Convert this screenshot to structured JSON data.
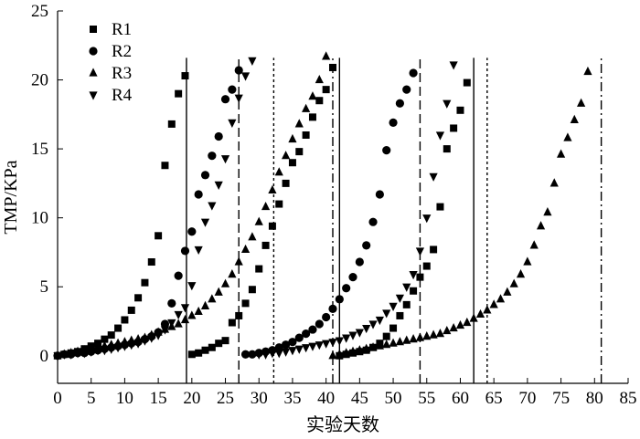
{
  "chart_data": {
    "type": "scatter",
    "title": "",
    "xlabel": "实验天数",
    "ylabel": "TMP/KPa",
    "xlim": [
      0,
      85
    ],
    "ylim": [
      -2,
      25
    ],
    "xticks": [
      0,
      5,
      10,
      15,
      20,
      25,
      30,
      35,
      40,
      45,
      50,
      55,
      60,
      65,
      70,
      75,
      80,
      85
    ],
    "yticks": [
      0,
      5,
      10,
      15,
      20,
      25
    ],
    "grid": false,
    "legend_position": "top-left",
    "series": [
      {
        "name": "R1",
        "marker": "square",
        "values": [
          [
            0,
            0
          ],
          [
            1,
            0.1
          ],
          [
            2,
            0.2
          ],
          [
            3,
            0.3
          ],
          [
            4,
            0.5
          ],
          [
            5,
            0.7
          ],
          [
            6,
            0.9
          ],
          [
            7,
            1.2
          ],
          [
            8,
            1.5
          ],
          [
            9,
            2.0
          ],
          [
            10,
            2.6
          ],
          [
            11,
            3.3
          ],
          [
            12,
            4.2
          ],
          [
            13,
            5.3
          ],
          [
            14,
            6.8
          ],
          [
            15,
            8.7
          ],
          [
            16,
            13.8
          ],
          [
            17,
            16.8
          ],
          [
            18,
            19.0
          ],
          [
            19,
            20.3
          ],
          [
            20,
            0.1
          ],
          [
            21,
            0.2
          ],
          [
            22,
            0.4
          ],
          [
            23,
            0.6
          ],
          [
            24,
            0.9
          ],
          [
            25,
            1.1
          ],
          [
            26,
            2.4
          ],
          [
            27,
            2.9
          ],
          [
            28,
            3.8
          ],
          [
            29,
            4.8
          ],
          [
            30,
            6.3
          ],
          [
            31,
            8.0
          ],
          [
            32,
            9.4
          ],
          [
            33,
            11.0
          ],
          [
            34,
            12.5
          ],
          [
            35,
            14.0
          ],
          [
            36,
            14.8
          ],
          [
            37,
            16.0
          ],
          [
            38,
            17.3
          ],
          [
            39,
            18.5
          ],
          [
            40,
            19.3
          ],
          [
            41,
            20.9
          ],
          [
            42,
            0
          ],
          [
            43,
            0.1
          ],
          [
            44,
            0.2
          ],
          [
            45,
            0.3
          ],
          [
            46,
            0.4
          ],
          [
            47,
            0.6
          ],
          [
            48,
            0.9
          ],
          [
            49,
            1.4
          ],
          [
            50,
            2.0
          ],
          [
            51,
            2.9
          ],
          [
            52,
            3.7
          ],
          [
            53,
            4.7
          ],
          [
            54,
            5.7
          ],
          [
            55,
            6.5
          ],
          [
            56,
            7.7
          ],
          [
            57,
            10.8
          ],
          [
            58,
            15.0
          ],
          [
            59,
            16.5
          ],
          [
            60,
            17.8
          ],
          [
            61,
            19.8
          ]
        ]
      },
      {
        "name": "R2",
        "marker": "circle",
        "values": [
          [
            0,
            0
          ],
          [
            1,
            0.1
          ],
          [
            2,
            0.1
          ],
          [
            3,
            0.2
          ],
          [
            4,
            0.2
          ],
          [
            5,
            0.3
          ],
          [
            6,
            0.4
          ],
          [
            7,
            0.5
          ],
          [
            8,
            0.6
          ],
          [
            9,
            0.7
          ],
          [
            10,
            0.8
          ],
          [
            11,
            0.9
          ],
          [
            12,
            1.0
          ],
          [
            13,
            1.2
          ],
          [
            14,
            1.4
          ],
          [
            15,
            1.7
          ],
          [
            16,
            2.3
          ],
          [
            17,
            3.8
          ],
          [
            18,
            5.8
          ],
          [
            19,
            7.6
          ],
          [
            20,
            9.0
          ],
          [
            21,
            11.7
          ],
          [
            22,
            13.1
          ],
          [
            23,
            14.5
          ],
          [
            24,
            15.9
          ],
          [
            25,
            18.6
          ],
          [
            26,
            19.3
          ],
          [
            27,
            20.7
          ],
          [
            28,
            0.1
          ],
          [
            29,
            0.1
          ],
          [
            30,
            0.2
          ],
          [
            31,
            0.3
          ],
          [
            32,
            0.4
          ],
          [
            33,
            0.6
          ],
          [
            34,
            0.8
          ],
          [
            35,
            1.0
          ],
          [
            36,
            1.3
          ],
          [
            37,
            1.6
          ],
          [
            38,
            1.9
          ],
          [
            39,
            2.3
          ],
          [
            40,
            2.8
          ],
          [
            41,
            3.4
          ],
          [
            42,
            4.1
          ],
          [
            43,
            4.9
          ],
          [
            44,
            5.7
          ],
          [
            45,
            6.8
          ],
          [
            46,
            8.0
          ],
          [
            47,
            9.7
          ],
          [
            48,
            11.7
          ],
          [
            49,
            14.9
          ],
          [
            50,
            16.9
          ],
          [
            51,
            18.3
          ],
          [
            52,
            19.3
          ],
          [
            53,
            20.5
          ]
        ]
      },
      {
        "name": "R3",
        "marker": "triangle-up",
        "values": [
          [
            0,
            0
          ],
          [
            1,
            0.1
          ],
          [
            2,
            0.2
          ],
          [
            3,
            0.3
          ],
          [
            4,
            0.4
          ],
          [
            5,
            0.5
          ],
          [
            6,
            0.6
          ],
          [
            7,
            0.7
          ],
          [
            8,
            0.8
          ],
          [
            9,
            0.9
          ],
          [
            10,
            1.0
          ],
          [
            11,
            1.1
          ],
          [
            12,
            1.2
          ],
          [
            13,
            1.3
          ],
          [
            14,
            1.5
          ],
          [
            15,
            1.7
          ],
          [
            16,
            1.9
          ],
          [
            17,
            2.1
          ],
          [
            18,
            2.3
          ],
          [
            19,
            2.6
          ],
          [
            20,
            2.9
          ],
          [
            21,
            3.2
          ],
          [
            22,
            3.6
          ],
          [
            23,
            4.1
          ],
          [
            24,
            4.6
          ],
          [
            25,
            5.2
          ],
          [
            26,
            5.9
          ],
          [
            27,
            6.8
          ],
          [
            28,
            7.7
          ],
          [
            29,
            8.6
          ],
          [
            30,
            9.7
          ],
          [
            31,
            10.8
          ],
          [
            32,
            12.0
          ],
          [
            33,
            13.3
          ],
          [
            34,
            14.5
          ],
          [
            35,
            15.7
          ],
          [
            36,
            16.8
          ],
          [
            37,
            17.9
          ],
          [
            38,
            18.8
          ],
          [
            39,
            20.0
          ],
          [
            40,
            21.7
          ],
          [
            41,
            0
          ],
          [
            42,
            0.1
          ],
          [
            43,
            0.2
          ],
          [
            44,
            0.3
          ],
          [
            45,
            0.4
          ],
          [
            46,
            0.5
          ],
          [
            47,
            0.6
          ],
          [
            48,
            0.7
          ],
          [
            49,
            0.8
          ],
          [
            50,
            0.9
          ],
          [
            51,
            1.0
          ],
          [
            52,
            1.1
          ],
          [
            53,
            1.2
          ],
          [
            54,
            1.3
          ],
          [
            55,
            1.4
          ],
          [
            56,
            1.5
          ],
          [
            57,
            1.6
          ],
          [
            58,
            1.8
          ],
          [
            59,
            2.0
          ],
          [
            60,
            2.2
          ],
          [
            61,
            2.4
          ],
          [
            62,
            2.7
          ],
          [
            63,
            3.0
          ],
          [
            64,
            3.3
          ],
          [
            65,
            3.7
          ],
          [
            66,
            4.1
          ],
          [
            67,
            4.6
          ],
          [
            68,
            5.2
          ],
          [
            69,
            5.9
          ],
          [
            70,
            6.8
          ],
          [
            71,
            8.0
          ],
          [
            72,
            9.4
          ],
          [
            73,
            10.4
          ],
          [
            74,
            12.5
          ],
          [
            75,
            14.6
          ],
          [
            76,
            15.8
          ],
          [
            77,
            17.1
          ],
          [
            78,
            18.3
          ],
          [
            79,
            20.6
          ]
        ]
      },
      {
        "name": "R4",
        "marker": "triangle-down",
        "values": [
          [
            0,
            0
          ],
          [
            1,
            0.1
          ],
          [
            2,
            0.1
          ],
          [
            3,
            0.2
          ],
          [
            4,
            0.2
          ],
          [
            5,
            0.3
          ],
          [
            6,
            0.4
          ],
          [
            7,
            0.4
          ],
          [
            8,
            0.5
          ],
          [
            9,
            0.6
          ],
          [
            10,
            0.7
          ],
          [
            11,
            0.8
          ],
          [
            12,
            0.9
          ],
          [
            13,
            1.1
          ],
          [
            14,
            1.3
          ],
          [
            15,
            1.5
          ],
          [
            16,
            1.9
          ],
          [
            17,
            2.4
          ],
          [
            18,
            3.0
          ],
          [
            19,
            3.5
          ],
          [
            20,
            5.1
          ],
          [
            21,
            7.7
          ],
          [
            22,
            9.7
          ],
          [
            23,
            10.9
          ],
          [
            24,
            12.4
          ],
          [
            25,
            14.3
          ],
          [
            26,
            16.9
          ],
          [
            27,
            18.7
          ],
          [
            28,
            20.3
          ],
          [
            29,
            21.4
          ],
          [
            30,
            0.1
          ],
          [
            31,
            0.1
          ],
          [
            32,
            0.2
          ],
          [
            33,
            0.2
          ],
          [
            34,
            0.3
          ],
          [
            35,
            0.4
          ],
          [
            36,
            0.5
          ],
          [
            37,
            0.6
          ],
          [
            38,
            0.7
          ],
          [
            39,
            0.8
          ],
          [
            40,
            0.9
          ],
          [
            41,
            1.0
          ],
          [
            42,
            1.1
          ],
          [
            43,
            1.3
          ],
          [
            44,
            1.5
          ],
          [
            45,
            1.7
          ],
          [
            46,
            2.0
          ],
          [
            47,
            2.3
          ],
          [
            48,
            2.6
          ],
          [
            49,
            3.1
          ],
          [
            50,
            3.6
          ],
          [
            51,
            4.2
          ],
          [
            52,
            5.0
          ],
          [
            53,
            5.9
          ],
          [
            54,
            7.6
          ],
          [
            55,
            10.0
          ],
          [
            56,
            13.0
          ],
          [
            57,
            16.0
          ],
          [
            58,
            18.3
          ],
          [
            59,
            21.1
          ]
        ]
      }
    ],
    "vertical_lines": [
      {
        "series": "R1",
        "x": 19.2,
        "style": "solid"
      },
      {
        "series": "R2",
        "x": 27.0,
        "style": "dashed"
      },
      {
        "series": "R3",
        "x": 41.0,
        "style": "dash-dot"
      },
      {
        "series": "R4",
        "x": 32.2,
        "style": "dotted"
      },
      {
        "series": "R1",
        "x": 42.0,
        "style": "solid"
      },
      {
        "series": "R2",
        "x": 54.0,
        "style": "dashed"
      },
      {
        "series": "R4",
        "x": 64.0,
        "style": "dotted"
      },
      {
        "series": "R1",
        "x": 62.0,
        "style": "solid"
      },
      {
        "series": "R3",
        "x": 81.0,
        "style": "dash-dot"
      }
    ]
  }
}
